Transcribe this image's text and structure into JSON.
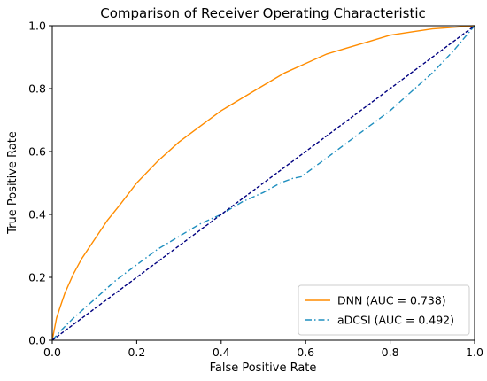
{
  "chart_data": {
    "type": "line",
    "title": "Comparison of Receiver Operating Characteristic",
    "xlabel": "False Positive Rate",
    "ylabel": "True Positive Rate",
    "xlim": [
      0.0,
      1.0
    ],
    "ylim": [
      0.0,
      1.0
    ],
    "xticks": [
      0.0,
      0.2,
      0.4,
      0.6,
      0.8,
      1.0
    ],
    "yticks": [
      0.0,
      0.2,
      0.4,
      0.6,
      0.8,
      1.0
    ],
    "xtick_labels": [
      "0.0",
      "0.2",
      "0.4",
      "0.6",
      "0.8",
      "1.0"
    ],
    "ytick_labels": [
      "0.0",
      "0.2",
      "0.4",
      "0.6",
      "0.8",
      "1.0"
    ],
    "grid": false,
    "legend_position": "lower-right",
    "series": [
      {
        "name": "DNN (AUC = 0.738)",
        "color": "#ff8c00",
        "style": "solid",
        "x": [
          0.0,
          0.01,
          0.02,
          0.03,
          0.05,
          0.07,
          0.1,
          0.13,
          0.16,
          0.2,
          0.25,
          0.3,
          0.35,
          0.4,
          0.45,
          0.5,
          0.55,
          0.6,
          0.65,
          0.7,
          0.75,
          0.8,
          0.85,
          0.9,
          0.95,
          1.0
        ],
        "y": [
          0.0,
          0.07,
          0.11,
          0.15,
          0.21,
          0.26,
          0.32,
          0.38,
          0.43,
          0.5,
          0.57,
          0.63,
          0.68,
          0.73,
          0.77,
          0.81,
          0.85,
          0.88,
          0.91,
          0.93,
          0.95,
          0.97,
          0.98,
          0.99,
          0.995,
          1.0
        ]
      },
      {
        "name": "aDCSI (AUC = 0.492)",
        "color": "#1f8fbf",
        "style": "dashdot",
        "x": [
          0.0,
          0.02,
          0.05,
          0.1,
          0.15,
          0.2,
          0.25,
          0.3,
          0.35,
          0.4,
          0.45,
          0.5,
          0.54,
          0.57,
          0.59,
          0.6,
          0.65,
          0.7,
          0.75,
          0.8,
          0.85,
          0.9,
          0.95,
          1.0
        ],
        "y": [
          0.0,
          0.03,
          0.07,
          0.13,
          0.19,
          0.24,
          0.29,
          0.33,
          0.37,
          0.4,
          0.44,
          0.47,
          0.5,
          0.515,
          0.52,
          0.53,
          0.58,
          0.63,
          0.68,
          0.73,
          0.79,
          0.85,
          0.92,
          1.0
        ]
      },
      {
        "name": "",
        "color": "#000080",
        "style": "dashed",
        "x": [
          0.0,
          1.0
        ],
        "y": [
          0.0,
          1.0
        ]
      }
    ]
  }
}
